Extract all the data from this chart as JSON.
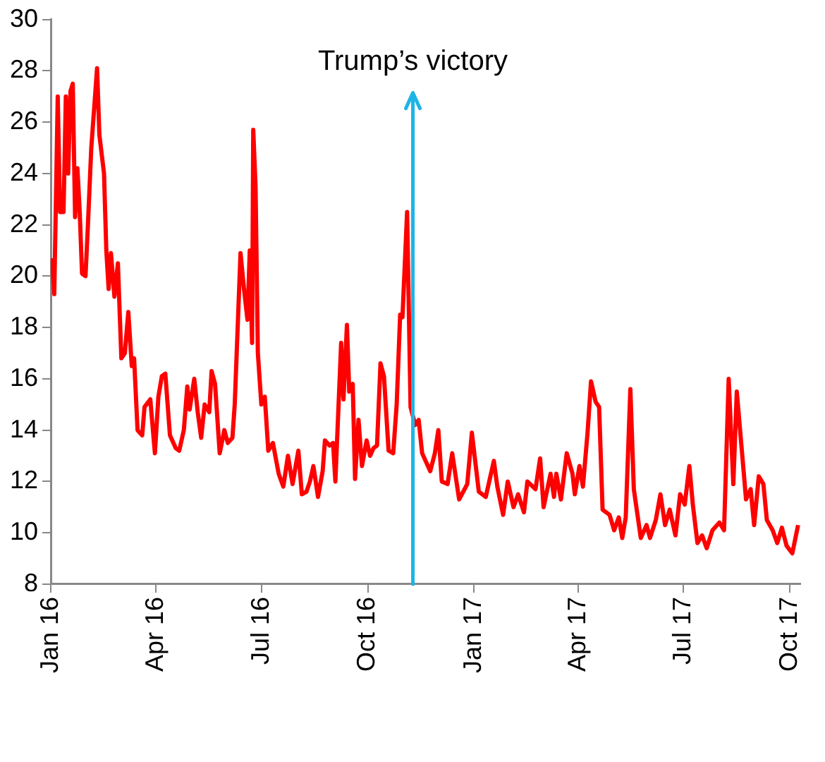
{
  "chart_data": {
    "type": "line",
    "marker": "none",
    "legend": false,
    "grid": false,
    "xlim": [
      "2016-01-01",
      "2017-10-10"
    ],
    "xticks": [
      {
        "value": "2016-01-01",
        "label": "Jan 16"
      },
      {
        "value": "2016-04-01",
        "label": "Apr 16"
      },
      {
        "value": "2016-07-01",
        "label": "Jul 16"
      },
      {
        "value": "2016-10-01",
        "label": "Oct 16"
      },
      {
        "value": "2017-01-01",
        "label": "Jan 17"
      },
      {
        "value": "2017-04-01",
        "label": "Apr 17"
      },
      {
        "value": "2017-07-01",
        "label": "Jul 17"
      },
      {
        "value": "2017-10-01",
        "label": "Oct 17"
      }
    ],
    "ylim": [
      8,
      30
    ],
    "yticks": [
      8,
      10,
      12,
      14,
      16,
      18,
      20,
      22,
      24,
      26,
      28,
      30
    ],
    "ref_lines": [
      {
        "axis": "x",
        "value": "2016-11-09",
        "label": "Trump’s victory",
        "color": "#1eb4e6"
      }
    ],
    "series": [
      {
        "color": "#ff0000",
        "x": [
          "2016-01-02",
          "2016-01-04",
          "2016-01-07",
          "2016-01-09",
          "2016-01-12",
          "2016-01-14",
          "2016-01-16",
          "2016-01-18",
          "2016-01-20",
          "2016-01-22",
          "2016-01-24",
          "2016-01-26",
          "2016-01-28",
          "2016-01-31",
          "2016-02-02",
          "2016-02-05",
          "2016-02-10",
          "2016-02-12",
          "2016-02-16",
          "2016-02-18",
          "2016-02-20",
          "2016-02-22",
          "2016-02-25",
          "2016-02-28",
          "2016-03-02",
          "2016-03-05",
          "2016-03-08",
          "2016-03-11",
          "2016-03-13",
          "2016-03-16",
          "2016-03-20",
          "2016-03-22",
          "2016-03-27",
          "2016-03-31",
          "2016-04-03",
          "2016-04-06",
          "2016-04-09",
          "2016-04-13",
          "2016-04-18",
          "2016-04-21",
          "2016-04-25",
          "2016-04-28",
          "2016-04-30",
          "2016-05-04",
          "2016-05-07",
          "2016-05-10",
          "2016-05-13",
          "2016-05-17",
          "2016-05-19",
          "2016-05-22",
          "2016-05-26",
          "2016-05-30",
          "2016-06-02",
          "2016-06-06",
          "2016-06-08",
          "2016-06-13",
          "2016-06-16",
          "2016-06-19",
          "2016-06-21",
          "2016-06-23",
          "2016-06-24",
          "2016-06-26",
          "2016-06-28",
          "2016-07-01",
          "2016-07-04",
          "2016-07-07",
          "2016-07-11",
          "2016-07-16",
          "2016-07-20",
          "2016-07-24",
          "2016-07-28",
          "2016-08-02",
          "2016-08-05",
          "2016-08-09",
          "2016-08-12",
          "2016-08-15",
          "2016-08-19",
          "2016-08-23",
          "2016-08-25",
          "2016-08-29",
          "2016-09-01",
          "2016-09-03",
          "2016-09-08",
          "2016-09-10",
          "2016-09-13",
          "2016-09-15",
          "2016-09-18",
          "2016-09-20",
          "2016-09-23",
          "2016-09-26",
          "2016-09-30",
          "2016-10-03",
          "2016-10-06",
          "2016-10-09",
          "2016-10-12",
          "2016-10-15",
          "2016-10-19",
          "2016-10-23",
          "2016-10-26",
          "2016-10-29",
          "2016-10-31",
          "2016-11-04",
          "2016-11-07",
          "2016-11-11",
          "2016-11-14",
          "2016-11-17",
          "2016-11-24",
          "2016-11-28",
          "2016-12-01",
          "2016-12-04",
          "2016-12-09",
          "2016-12-13",
          "2016-12-19",
          "2016-12-26",
          "2016-12-30",
          "2017-01-05",
          "2017-01-11",
          "2017-01-18",
          "2017-01-21",
          "2017-01-26",
          "2017-01-30",
          "2017-02-04",
          "2017-02-08",
          "2017-02-13",
          "2017-02-16",
          "2017-02-23",
          "2017-02-27",
          "2017-03-02",
          "2017-03-08",
          "2017-03-11",
          "2017-03-13",
          "2017-03-17",
          "2017-03-22",
          "2017-03-27",
          "2017-03-29",
          "2017-04-02",
          "2017-04-05",
          "2017-04-09",
          "2017-04-12",
          "2017-04-16",
          "2017-04-19",
          "2017-04-22",
          "2017-04-28",
          "2017-05-02",
          "2017-05-06",
          "2017-05-09",
          "2017-05-12",
          "2017-05-16",
          "2017-05-19",
          "2017-05-25",
          "2017-05-30",
          "2017-06-02",
          "2017-06-07",
          "2017-06-11",
          "2017-06-15",
          "2017-06-19",
          "2017-06-24",
          "2017-06-28",
          "2017-07-02",
          "2017-07-06",
          "2017-07-09",
          "2017-07-13",
          "2017-07-17",
          "2017-07-21",
          "2017-07-26",
          "2017-08-01",
          "2017-08-05",
          "2017-08-09",
          "2017-08-13",
          "2017-08-16",
          "2017-08-20",
          "2017-08-24",
          "2017-08-28",
          "2017-08-31",
          "2017-09-04",
          "2017-09-08",
          "2017-09-11",
          "2017-09-16",
          "2017-09-20",
          "2017-09-24",
          "2017-09-28",
          "2017-10-03",
          "2017-10-08"
        ],
        "values": [
          20.7,
          19.3,
          27,
          22.5,
          22.5,
          27,
          24,
          27.2,
          27.5,
          22.3,
          24.2,
          22.5,
          20.1,
          20,
          21.9,
          25,
          28.1,
          25.5,
          24,
          21,
          19.5,
          20.9,
          19.2,
          20.5,
          16.8,
          17,
          18.6,
          16.5,
          16.8,
          14,
          13.8,
          14.9,
          15.2,
          13.1,
          15.3,
          16.1,
          16.2,
          13.8,
          13.3,
          13.2,
          14,
          15.7,
          14.8,
          16,
          14.7,
          13.7,
          15,
          14.7,
          16.3,
          15.8,
          13.1,
          14,
          13.5,
          13.7,
          15,
          20.9,
          19.5,
          18.3,
          21,
          17.4,
          25.7,
          23.5,
          17,
          15,
          15.3,
          13.2,
          13.5,
          12.3,
          11.8,
          13,
          11.9,
          13.2,
          11.5,
          11.6,
          12,
          12.6,
          11.4,
          12.4,
          13.6,
          13.4,
          13.5,
          12,
          17.4,
          15.2,
          18.1,
          15.5,
          15.8,
          12.1,
          14.4,
          12.6,
          13.6,
          13,
          13.3,
          13.4,
          16.6,
          16.1,
          13.2,
          13.1,
          15,
          18.5,
          18.4,
          22.5,
          14.9,
          14.2,
          14.4,
          13.1,
          12.4,
          13.1,
          14,
          12,
          11.9,
          13.1,
          11.3,
          11.9,
          13.9,
          11.6,
          11.4,
          12.8,
          11.8,
          10.7,
          12,
          11,
          11.5,
          10.8,
          12,
          11.7,
          12.9,
          11,
          12.3,
          11.4,
          12.3,
          11.3,
          13.1,
          12.3,
          11.5,
          12.6,
          11.8,
          13.9,
          15.9,
          15.1,
          14.9,
          10.9,
          10.7,
          10.1,
          10.6,
          9.8,
          10.6,
          15.6,
          11.7,
          9.8,
          10.3,
          9.8,
          10.5,
          11.5,
          10.3,
          10.9,
          9.9,
          11.5,
          11.1,
          12.6,
          11.1,
          9.6,
          9.9,
          9.4,
          10.1,
          10.4,
          10.1,
          16,
          11.9,
          15.5,
          13.4,
          11.3,
          11.7,
          10.3,
          12.2,
          11.9,
          10.5,
          10.1,
          9.6,
          10.2,
          9.5,
          9.2,
          10.3
        ]
      }
    ]
  }
}
